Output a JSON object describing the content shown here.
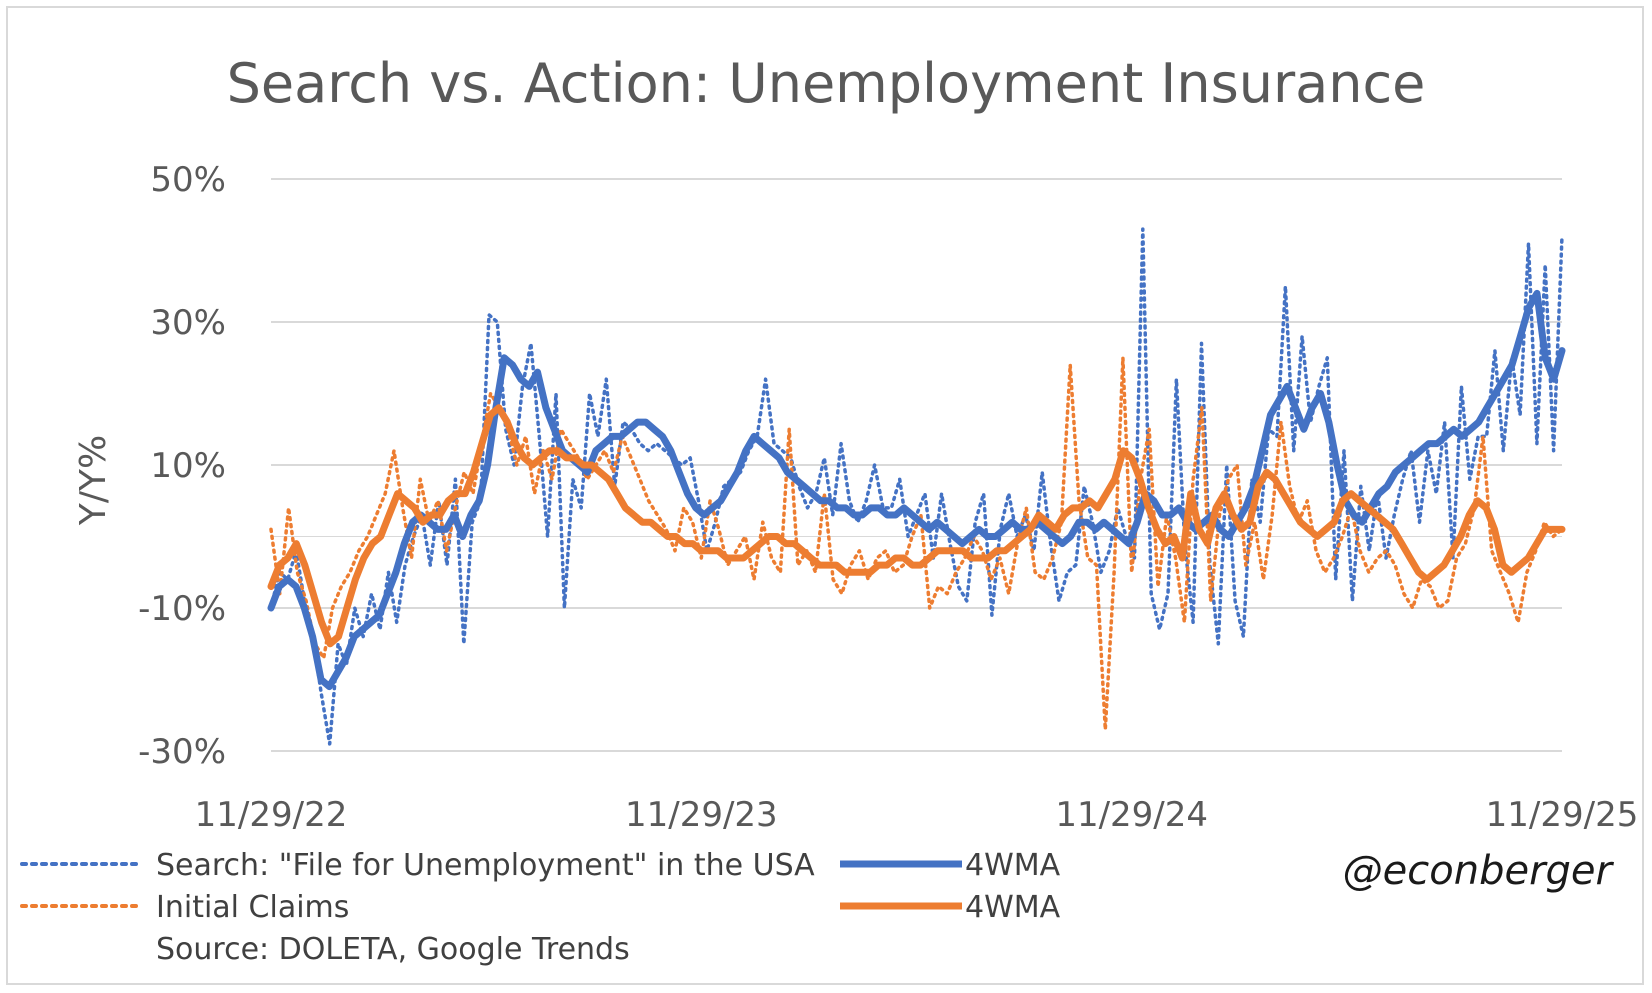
{
  "chart_data": {
    "type": "line",
    "title": "Search vs. Action: Unemployment Insurance",
    "ylabel": "Y/Y%",
    "xlabel": "",
    "ylim": [
      -30,
      50
    ],
    "yticks": [
      -30,
      -10,
      10,
      30,
      50
    ],
    "ytick_labels": [
      "-30%",
      "-10%",
      "10%",
      "30%",
      "50%"
    ],
    "gridlines": [
      -10,
      10,
      30,
      50
    ],
    "x_range": [
      "11/29/22",
      "11/29/25"
    ],
    "xtick_labels": [
      "11/29/22",
      "11/29/23",
      "11/29/24",
      "11/29/25"
    ],
    "legend_position": "bottom-left",
    "source": "Source: DOLETA, Google Trends",
    "handle": "@econberger",
    "series": [
      {
        "name": "Search: \"File for Unemployment\" in the USA",
        "style": "dotted",
        "color": "#4472c4",
        "values": [
          -10,
          -5,
          -6,
          -2,
          -9,
          -14,
          -22,
          -29,
          -15,
          -18,
          -10,
          -14,
          -8,
          -13,
          -5,
          -12,
          -4,
          0,
          3,
          -4,
          5,
          -4,
          8,
          -15,
          2,
          5,
          31,
          30,
          15,
          10,
          21,
          27,
          14,
          0,
          20,
          -10,
          8,
          4,
          20,
          14,
          22,
          7,
          16,
          15,
          13,
          12,
          13,
          12,
          11,
          10,
          11,
          5,
          -2,
          2,
          7,
          8,
          9,
          12,
          14,
          22,
          13,
          12,
          11,
          7,
          4,
          6,
          11,
          3,
          13,
          5,
          2,
          5,
          10,
          4,
          4,
          8,
          0,
          3,
          6,
          -3,
          6,
          -1,
          -7,
          -9,
          2,
          6,
          -11,
          1,
          6,
          0,
          3,
          -2,
          9,
          -1,
          -9,
          -5,
          -4,
          7,
          2,
          -5,
          -2,
          4,
          0,
          -3,
          43,
          -8,
          -13,
          -8,
          22,
          -1,
          -12,
          27,
          -4,
          -15,
          10,
          -9,
          -14,
          8,
          2,
          15,
          14,
          35,
          12,
          28,
          16,
          21,
          25,
          -6,
          12,
          -9,
          7,
          -2,
          6,
          -3,
          3,
          8,
          12,
          2,
          12,
          6,
          16,
          -3,
          21,
          8,
          14,
          14,
          26,
          12,
          25,
          17,
          41,
          13,
          38,
          12,
          42
        ]
      },
      {
        "name": "4WMA",
        "style": "solid",
        "color": "#4472c4",
        "values": [
          -10,
          -7,
          -6,
          -7,
          -10,
          -14,
          -20,
          -21,
          -19,
          -17,
          -14,
          -13,
          -12,
          -11,
          -8,
          -5,
          -1,
          2,
          3,
          2,
          1,
          1,
          3,
          0,
          3,
          5,
          10,
          18,
          25,
          24,
          22,
          21,
          23,
          18,
          15,
          12,
          11,
          10,
          9,
          12,
          13,
          14,
          14,
          15,
          16,
          16,
          15,
          14,
          12,
          9,
          6,
          4,
          3,
          4,
          5,
          7,
          9,
          12,
          14,
          13,
          12,
          11,
          9,
          8,
          7,
          6,
          5,
          5,
          4,
          4,
          3,
          3,
          4,
          4,
          3,
          3,
          4,
          3,
          2,
          1,
          2,
          1,
          0,
          -1,
          0,
          1,
          0,
          0,
          1,
          2,
          1,
          1,
          2,
          1,
          0,
          -1,
          0,
          2,
          2,
          1,
          2,
          1,
          0,
          -1,
          2,
          6,
          5,
          3,
          3,
          4,
          2,
          1,
          2,
          3,
          1,
          0,
          2,
          4,
          7,
          12,
          17,
          19,
          21,
          18,
          15,
          18,
          20,
          16,
          10,
          5,
          3,
          2,
          4,
          6,
          7,
          9,
          10,
          11,
          12,
          13,
          13,
          14,
          15,
          14,
          15,
          16,
          18,
          20,
          22,
          24,
          28,
          32,
          34,
          25,
          22,
          26
        ]
      },
      {
        "name": "Initial Claims",
        "style": "dotted",
        "color": "#ed7d31",
        "values": [
          1,
          -8,
          4,
          -5,
          -9,
          -15,
          -17,
          -10,
          -7,
          -5,
          -2,
          0,
          3,
          6,
          12,
          4,
          -3,
          8,
          2,
          5,
          -2,
          4,
          9,
          6,
          13,
          20,
          18,
          15,
          10,
          14,
          6,
          12,
          8,
          15,
          13,
          11,
          8,
          10,
          12,
          9,
          14,
          11,
          8,
          5,
          3,
          1,
          -2,
          4,
          2,
          -3,
          5,
          1,
          -4,
          -2,
          0,
          -6,
          2,
          -3,
          -5,
          15,
          -4,
          -2,
          -5,
          6,
          -6,
          -8,
          -4,
          -2,
          -6,
          -3,
          -2,
          -5,
          -4,
          0,
          3,
          -10,
          -7,
          -8,
          -5,
          -3,
          0,
          -2,
          -6,
          -3,
          -8,
          -1,
          4,
          -5,
          -6,
          -3,
          2,
          24,
          5,
          -3,
          -4,
          -27,
          -5,
          25,
          -5,
          8,
          15,
          -7,
          3,
          -3,
          -12,
          8,
          18,
          -9,
          3,
          8,
          10,
          -4,
          2,
          -6,
          3,
          16,
          7,
          2,
          5,
          -2,
          -5,
          -3,
          0,
          4,
          -2,
          -5,
          -3,
          -2,
          -4,
          -8,
          -10,
          -6,
          -7,
          -10,
          -9,
          -3,
          -1,
          4,
          14,
          -2,
          -5,
          -8,
          -12,
          -5,
          -2,
          2,
          0,
          1
        ]
      },
      {
        "name": "4WMA",
        "style": "solid",
        "color": "#ed7d31",
        "values": [
          -7,
          -4,
          -3,
          -1,
          -4,
          -8,
          -12,
          -15,
          -14,
          -10,
          -6,
          -3,
          -1,
          0,
          3,
          6,
          5,
          4,
          2,
          3,
          3,
          5,
          6,
          6,
          9,
          13,
          17,
          18,
          16,
          13,
          11,
          10,
          11,
          12,
          12,
          11,
          11,
          10,
          10,
          9,
          8,
          6,
          4,
          3,
          2,
          2,
          1,
          0,
          0,
          -1,
          -1,
          -2,
          -2,
          -2,
          -3,
          -3,
          -3,
          -2,
          -1,
          0,
          0,
          -1,
          -1,
          -2,
          -3,
          -4,
          -4,
          -4,
          -5,
          -5,
          -5,
          -5,
          -4,
          -4,
          -3,
          -3,
          -4,
          -4,
          -3,
          -2,
          -2,
          -2,
          -2,
          -3,
          -3,
          -3,
          -2,
          -2,
          -1,
          0,
          1,
          3,
          2,
          1,
          3,
          4,
          4,
          5,
          4,
          6,
          8,
          12,
          11,
          8,
          4,
          1,
          -1,
          0,
          -3,
          6,
          1,
          -1,
          4,
          6,
          3,
          1,
          2,
          7,
          9,
          8,
          6,
          4,
          2,
          1,
          0,
          1,
          2,
          5,
          6,
          5,
          4,
          3,
          2,
          1,
          -1,
          -3,
          -5,
          -6,
          -5,
          -4,
          -2,
          0,
          3,
          5,
          4,
          1,
          -4,
          -5,
          -4,
          -3,
          -1,
          1,
          1,
          1
        ]
      }
    ]
  }
}
